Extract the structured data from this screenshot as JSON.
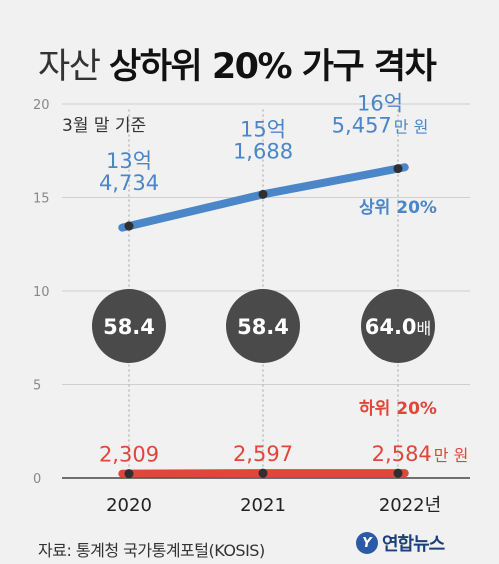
{
  "title": {
    "light": "자산",
    "bold": "상하위 20% 가구 격차"
  },
  "note": "3월 말 기준",
  "source": "자료: 통계청 국가통계포털(KOSIS)",
  "logo": {
    "mark": "Y",
    "text": "연합뉴스"
  },
  "chart_data": {
    "type": "line",
    "categories": [
      "2020",
      "2021",
      "2022년"
    ],
    "ylim": [
      0,
      20
    ],
    "yticks": [
      0,
      5,
      10,
      15,
      20
    ],
    "grid": true,
    "series": [
      {
        "name": "상위 20%",
        "color": "#4a86c8",
        "values": [
          13.4734,
          15.1688,
          16.5457
        ],
        "labels": [
          {
            "line1": "13억",
            "line2": "4,734",
            "unit": ""
          },
          {
            "line1": "15억",
            "line2": "1,688",
            "unit": ""
          },
          {
            "line1": "16억",
            "line2": "5,457",
            "unit": "만 원"
          }
        ]
      },
      {
        "name": "하위 20%",
        "color": "#e0463a",
        "values": [
          0.2309,
          0.2597,
          0.2584
        ],
        "labels": [
          {
            "line1": "2,309",
            "unit": ""
          },
          {
            "line1": "2,597",
            "unit": ""
          },
          {
            "line1": "2,584",
            "unit": "만 원"
          }
        ]
      }
    ],
    "ratios": [
      {
        "value": "58.4",
        "unit": ""
      },
      {
        "value": "58.4",
        "unit": ""
      },
      {
        "value": "64.0",
        "unit": "배"
      }
    ]
  }
}
